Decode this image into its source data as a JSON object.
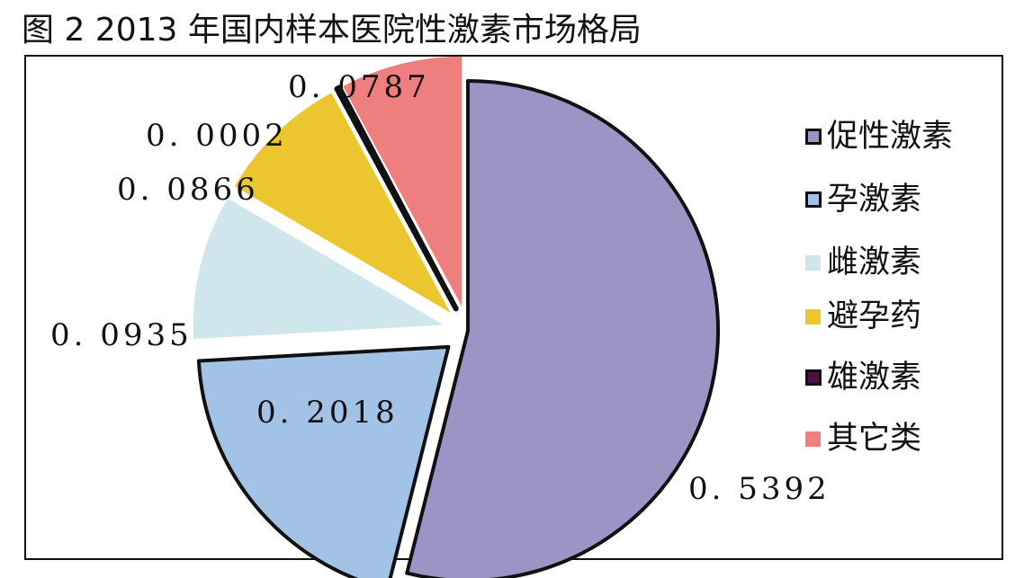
{
  "title": "图 2  2013 年国内样本医院性激素市场格局",
  "chart_data": {
    "type": "pie",
    "title": "图 2  2013 年国内样本医院性激素市场格局",
    "slices": [
      {
        "name": "促性激素",
        "value": 0.5392,
        "label": "0. 5392",
        "color": "#9b94c4",
        "edge": "#111111",
        "exploded": false
      },
      {
        "name": "孕激素",
        "value": 0.2018,
        "label": "0. 2018",
        "color": "#a3c3e6",
        "edge": "#111111",
        "exploded": true
      },
      {
        "name": "雌激素",
        "value": 0.0935,
        "label": "0. 0935",
        "color": "#cfe6ec",
        "edge": "none",
        "exploded": true
      },
      {
        "name": "避孕药",
        "value": 0.0866,
        "label": "0. 0866",
        "color": "#ebc62f",
        "edge": "none",
        "exploded": true
      },
      {
        "name": "雄激素",
        "value": 0.0002,
        "label": "0. 0002",
        "color": "#4d1140",
        "edge": "#111111",
        "exploded": true
      },
      {
        "name": "其它类",
        "value": 0.0787,
        "label": "0. 0787",
        "color": "#ef7f7f",
        "edge": "none",
        "exploded": true
      }
    ],
    "legend_position": "right"
  },
  "legend": [
    {
      "label": "促性激素",
      "color": "#9b94c4",
      "bordered": true
    },
    {
      "label": "孕激素",
      "color": "#a3c3e6",
      "bordered": true
    },
    {
      "label": "雌激素",
      "color": "#cfe6ec",
      "bordered": false
    },
    {
      "label": "避孕药",
      "color": "#ebc62f",
      "bordered": false
    },
    {
      "label": "雄激素",
      "color": "#4d1140",
      "bordered": true
    },
    {
      "label": "其它类",
      "color": "#ef7f7f",
      "bordered": false
    }
  ]
}
